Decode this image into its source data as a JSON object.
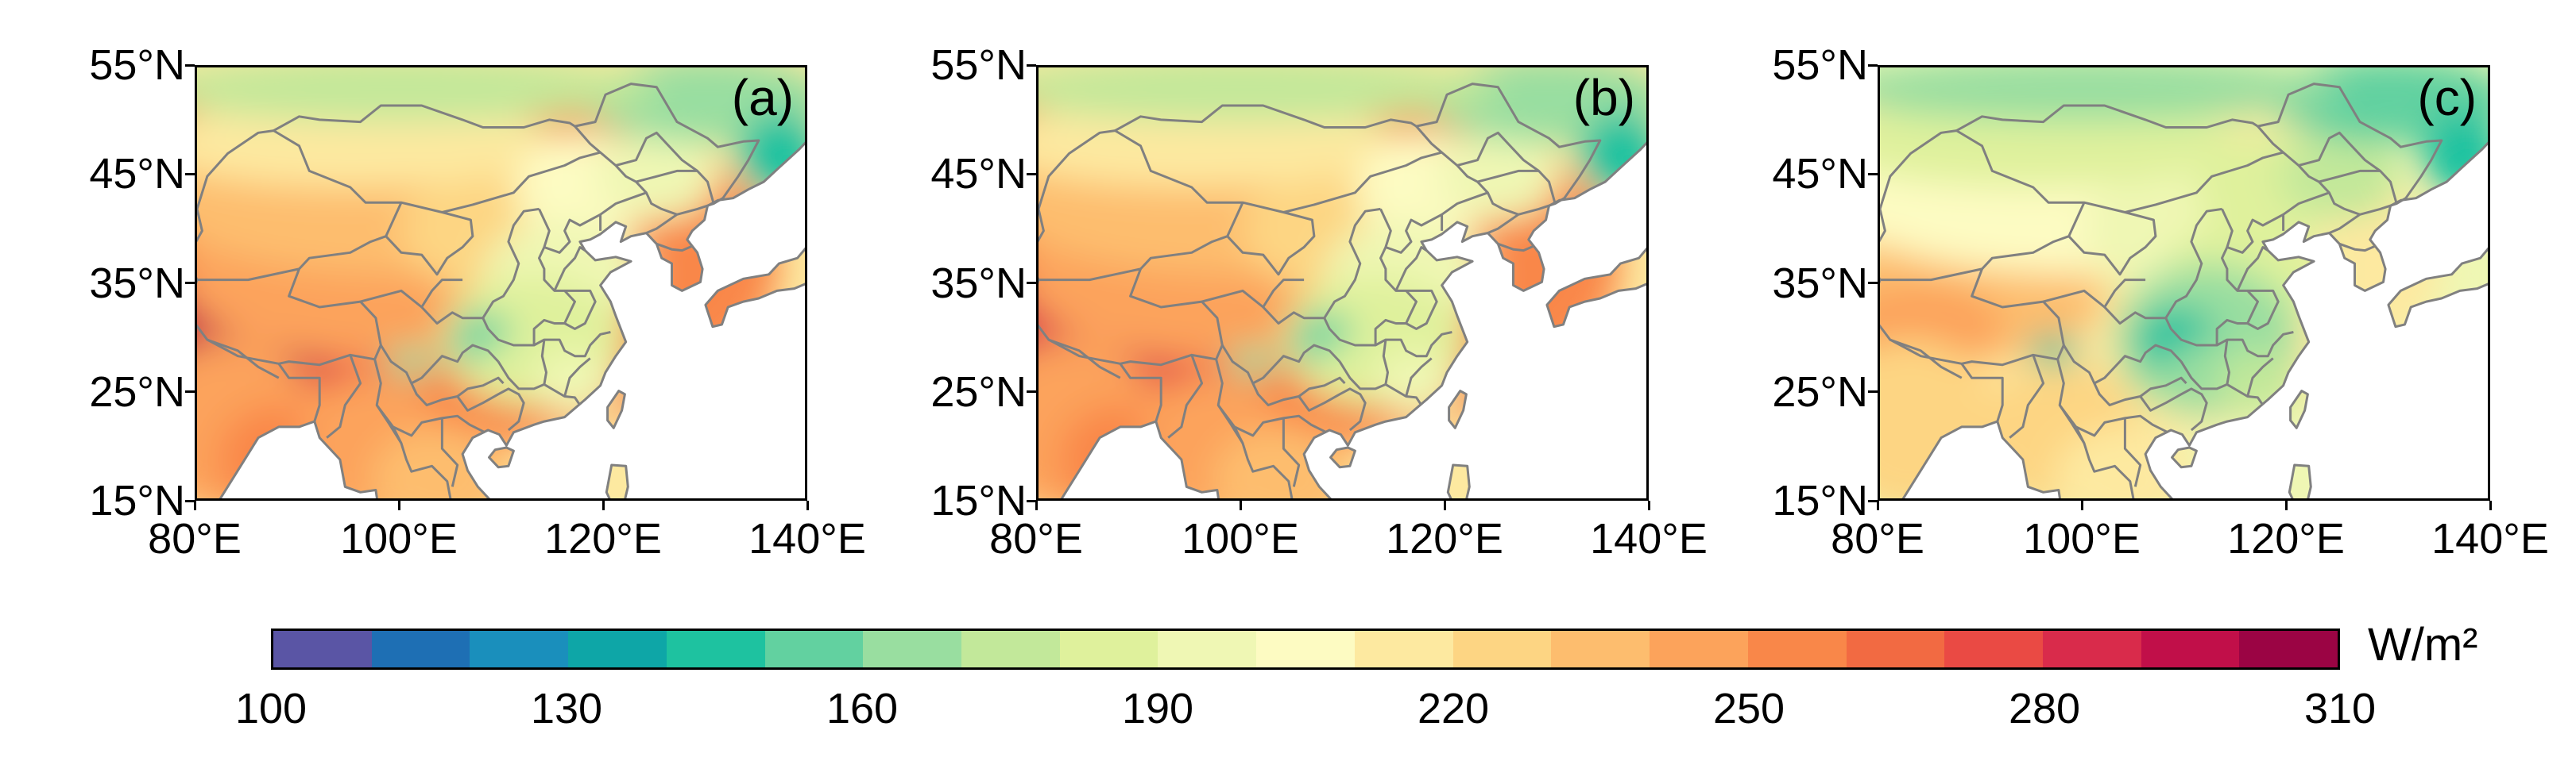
{
  "panels": [
    {
      "label": "(a)"
    },
    {
      "label": "(b)"
    },
    {
      "label": "(c)"
    }
  ],
  "axes": {
    "lat_ticks": [
      "55°N",
      "45°N",
      "35°N",
      "25°N",
      "15°N"
    ],
    "lon_ticks": [
      "80°E",
      "100°E",
      "120°E",
      "140°E"
    ],
    "lat_range": [
      15,
      55
    ],
    "lon_range": [
      80,
      140
    ]
  },
  "colorbar": {
    "unit": "W/m²",
    "tick_labels": [
      "100",
      "130",
      "160",
      "190",
      "220",
      "250",
      "280",
      "310"
    ],
    "range": [
      100,
      310
    ],
    "step": 10,
    "colors": [
      "#5a55a5",
      "#1e6fb4",
      "#1a8fbc",
      "#0ea6a7",
      "#1ec2a0",
      "#62d1a0",
      "#99dea0",
      "#c2e89a",
      "#dff19c",
      "#eff7b4",
      "#fdfbc2",
      "#fde9a0",
      "#fdd583",
      "#fdbd6e",
      "#fca35b",
      "#f98749",
      "#f26a42",
      "#ea4a44",
      "#d92b4b",
      "#c10f49",
      "#9b0444"
    ]
  },
  "colors": {
    "land_border": "#808080",
    "ocean": "#ffffff"
  }
}
